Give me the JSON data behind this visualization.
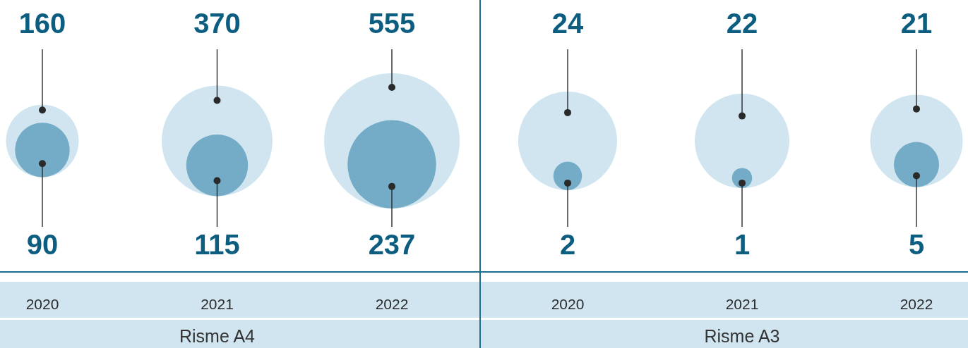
{
  "chart_data": [
    {
      "type": "other",
      "categories": [
        "2020",
        "2021",
        "2022"
      ],
      "xlabel": "Risme A4",
      "series": [
        {
          "color": "#d0e5f0",
          "values": [
            160,
            370,
            555
          ]
        },
        {
          "color": "#74abc6",
          "values": [
            90,
            115,
            237
          ]
        }
      ],
      "data_labels": true
    },
    {
      "type": "other",
      "categories": [
        "2020",
        "2021",
        "2022"
      ],
      "xlabel": "Risme A3",
      "series": [
        {
          "color": "#d0e5f0",
          "values": [
            24,
            22,
            21
          ]
        },
        {
          "color": "#74abc6",
          "values": [
            2,
            1,
            5
          ]
        }
      ],
      "data_labels": true
    }
  ]
}
